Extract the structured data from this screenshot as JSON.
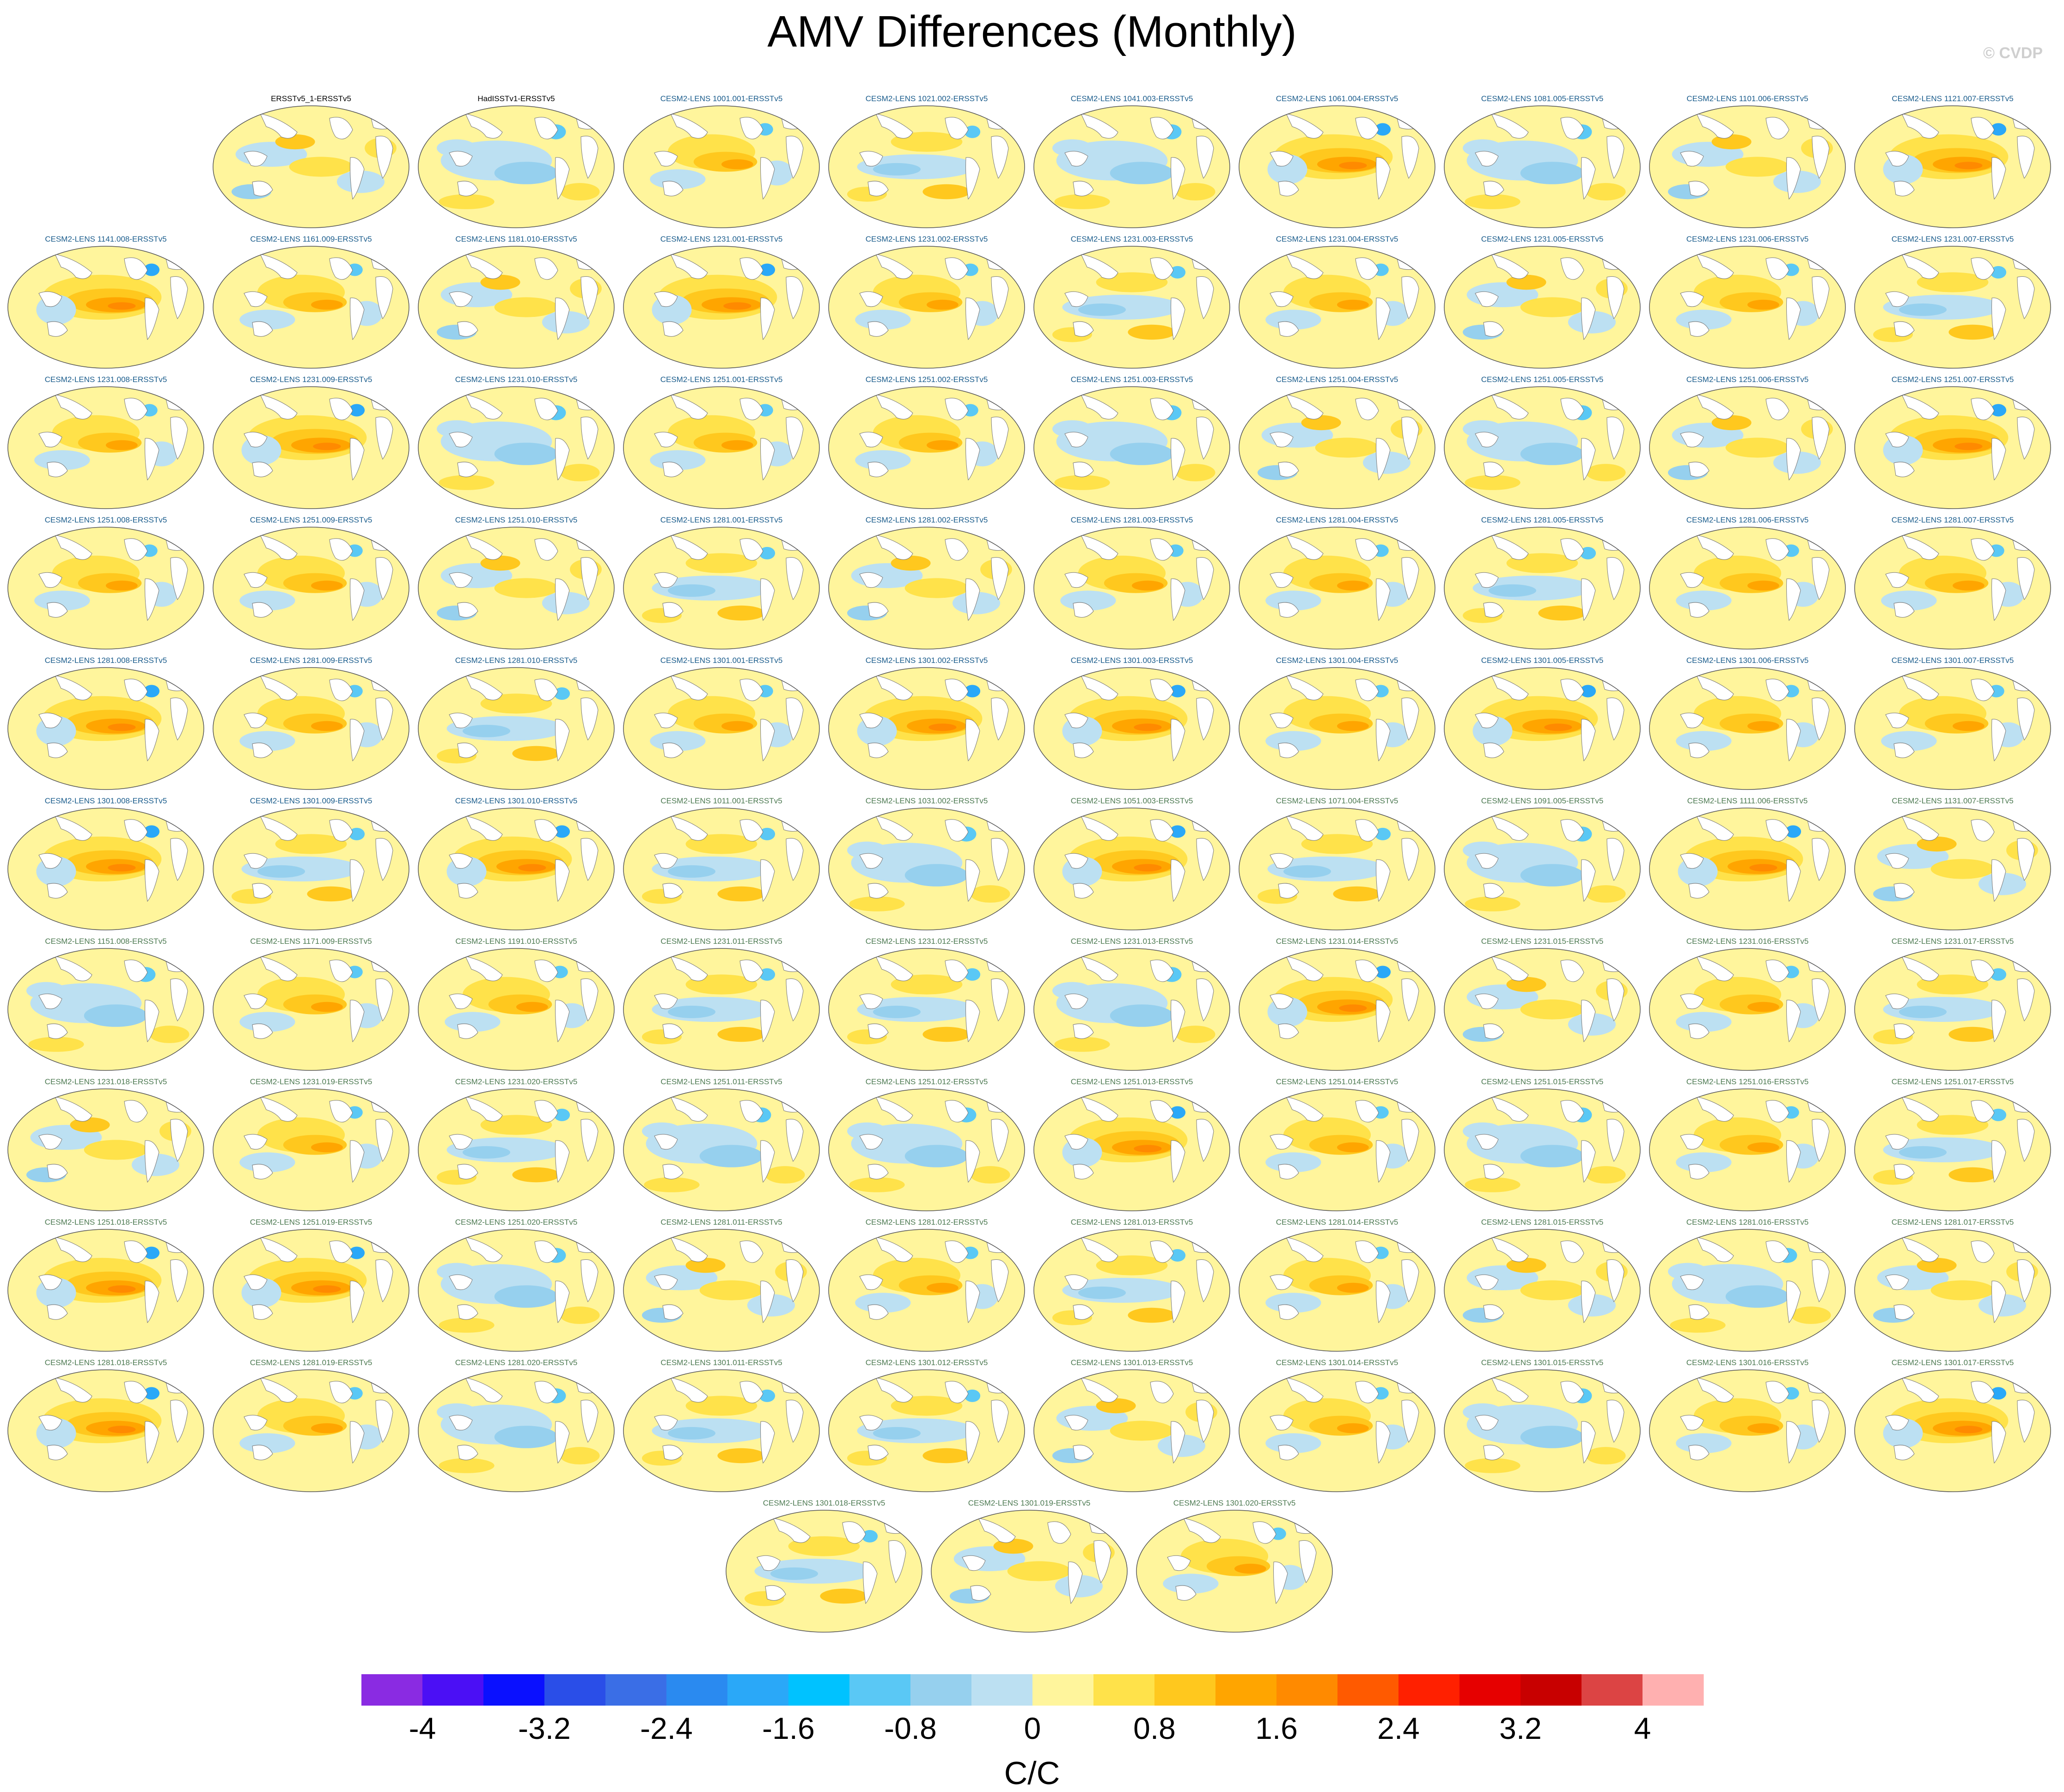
{
  "title": "AMV Differences (Monthly)",
  "watermark": "© CVDP",
  "colors": {
    "obs_label": "#000000",
    "member_label": "#1a5c8c",
    "member_label_alt": "#4d7a52"
  },
  "panels": [
    {
      "label": "ERSSTv5_1-ERSSTv5",
      "style": "obs",
      "pattern": 0
    },
    {
      "label": "HadISSTv1-ERSSTv5",
      "style": "obs",
      "pattern": 1
    },
    {
      "label": "CESM2-LENS 1001.001-ERSSTv5",
      "style": "member",
      "pattern": 2
    },
    {
      "label": "CESM2-LENS 1021.002-ERSSTv5",
      "style": "member",
      "pattern": 3
    },
    {
      "label": "CESM2-LENS 1041.003-ERSSTv5",
      "style": "member",
      "pattern": 1
    },
    {
      "label": "CESM2-LENS 1061.004-ERSSTv5",
      "style": "member",
      "pattern": 4
    },
    {
      "label": "CESM2-LENS 1081.005-ERSSTv5",
      "style": "member",
      "pattern": 1
    },
    {
      "label": "CESM2-LENS 1101.006-ERSSTv5",
      "style": "member",
      "pattern": 0
    },
    {
      "label": "CESM2-LENS 1121.007-ERSSTv5",
      "style": "member",
      "pattern": 4
    },
    {
      "label": "CESM2-LENS 1141.008-ERSSTv5",
      "style": "member",
      "pattern": 4
    },
    {
      "label": "CESM2-LENS 1161.009-ERSSTv5",
      "style": "member",
      "pattern": 2
    },
    {
      "label": "CESM2-LENS 1181.010-ERSSTv5",
      "style": "member",
      "pattern": 0
    },
    {
      "label": "CESM2-LENS 1231.001-ERSSTv5",
      "style": "member",
      "pattern": 4
    },
    {
      "label": "CESM2-LENS 1231.002-ERSSTv5",
      "style": "member",
      "pattern": 2
    },
    {
      "label": "CESM2-LENS 1231.003-ERSSTv5",
      "style": "member",
      "pattern": 3
    },
    {
      "label": "CESM2-LENS 1231.004-ERSSTv5",
      "style": "member",
      "pattern": 2
    },
    {
      "label": "CESM2-LENS 1231.005-ERSSTv5",
      "style": "member",
      "pattern": 0
    },
    {
      "label": "CESM2-LENS 1231.006-ERSSTv5",
      "style": "member",
      "pattern": 2
    },
    {
      "label": "CESM2-LENS 1231.007-ERSSTv5",
      "style": "member",
      "pattern": 3
    },
    {
      "label": "CESM2-LENS 1231.008-ERSSTv5",
      "style": "member",
      "pattern": 2
    },
    {
      "label": "CESM2-LENS 1231.009-ERSSTv5",
      "style": "member",
      "pattern": 4
    },
    {
      "label": "CESM2-LENS 1231.010-ERSSTv5",
      "style": "member",
      "pattern": 1
    },
    {
      "label": "CESM2-LENS 1251.001-ERSSTv5",
      "style": "member",
      "pattern": 2
    },
    {
      "label": "CESM2-LENS 1251.002-ERSSTv5",
      "style": "member",
      "pattern": 2
    },
    {
      "label": "CESM2-LENS 1251.003-ERSSTv5",
      "style": "member",
      "pattern": 1
    },
    {
      "label": "CESM2-LENS 1251.004-ERSSTv5",
      "style": "member",
      "pattern": 0
    },
    {
      "label": "CESM2-LENS 1251.005-ERSSTv5",
      "style": "member",
      "pattern": 1
    },
    {
      "label": "CESM2-LENS 1251.006-ERSSTv5",
      "style": "member",
      "pattern": 0
    },
    {
      "label": "CESM2-LENS 1251.007-ERSSTv5",
      "style": "member",
      "pattern": 4
    },
    {
      "label": "CESM2-LENS 1251.008-ERSSTv5",
      "style": "member",
      "pattern": 2
    },
    {
      "label": "CESM2-LENS 1251.009-ERSSTv5",
      "style": "member",
      "pattern": 2
    },
    {
      "label": "CESM2-LENS 1251.010-ERSSTv5",
      "style": "member",
      "pattern": 0
    },
    {
      "label": "CESM2-LENS 1281.001-ERSSTv5",
      "style": "member",
      "pattern": 3
    },
    {
      "label": "CESM2-LENS 1281.002-ERSSTv5",
      "style": "member",
      "pattern": 0
    },
    {
      "label": "CESM2-LENS 1281.003-ERSSTv5",
      "style": "member",
      "pattern": 2
    },
    {
      "label": "CESM2-LENS 1281.004-ERSSTv5",
      "style": "member",
      "pattern": 2
    },
    {
      "label": "CESM2-LENS 1281.005-ERSSTv5",
      "style": "member",
      "pattern": 3
    },
    {
      "label": "CESM2-LENS 1281.006-ERSSTv5",
      "style": "member",
      "pattern": 2
    },
    {
      "label": "CESM2-LENS 1281.007-ERSSTv5",
      "style": "member",
      "pattern": 2
    },
    {
      "label": "CESM2-LENS 1281.008-ERSSTv5",
      "style": "member",
      "pattern": 4
    },
    {
      "label": "CESM2-LENS 1281.009-ERSSTv5",
      "style": "member",
      "pattern": 2
    },
    {
      "label": "CESM2-LENS 1281.010-ERSSTv5",
      "style": "member",
      "pattern": 3
    },
    {
      "label": "CESM2-LENS 1301.001-ERSSTv5",
      "style": "member",
      "pattern": 2
    },
    {
      "label": "CESM2-LENS 1301.002-ERSSTv5",
      "style": "member",
      "pattern": 4
    },
    {
      "label": "CESM2-LENS 1301.003-ERSSTv5",
      "style": "member",
      "pattern": 4
    },
    {
      "label": "CESM2-LENS 1301.004-ERSSTv5",
      "style": "member",
      "pattern": 2
    },
    {
      "label": "CESM2-LENS 1301.005-ERSSTv5",
      "style": "member",
      "pattern": 4
    },
    {
      "label": "CESM2-LENS 1301.006-ERSSTv5",
      "style": "member",
      "pattern": 2
    },
    {
      "label": "CESM2-LENS 1301.007-ERSSTv5",
      "style": "member",
      "pattern": 2
    },
    {
      "label": "CESM2-LENS 1301.008-ERSSTv5",
      "style": "member",
      "pattern": 4
    },
    {
      "label": "CESM2-LENS 1301.009-ERSSTv5",
      "style": "member",
      "pattern": 3
    },
    {
      "label": "CESM2-LENS 1301.010-ERSSTv5",
      "style": "member",
      "pattern": 4
    },
    {
      "label": "CESM2-LENS 1011.001-ERSSTv5",
      "style": "member_alt",
      "pattern": 3
    },
    {
      "label": "CESM2-LENS 1031.002-ERSSTv5",
      "style": "member_alt",
      "pattern": 1
    },
    {
      "label": "CESM2-LENS 1051.003-ERSSTv5",
      "style": "member_alt",
      "pattern": 4
    },
    {
      "label": "CESM2-LENS 1071.004-ERSSTv5",
      "style": "member_alt",
      "pattern": 3
    },
    {
      "label": "CESM2-LENS 1091.005-ERSSTv5",
      "style": "member_alt",
      "pattern": 1
    },
    {
      "label": "CESM2-LENS 1111.006-ERSSTv5",
      "style": "member_alt",
      "pattern": 4
    },
    {
      "label": "CESM2-LENS 1131.007-ERSSTv5",
      "style": "member_alt",
      "pattern": 0
    },
    {
      "label": "CESM2-LENS 1151.008-ERSSTv5",
      "style": "member_alt",
      "pattern": 1
    },
    {
      "label": "CESM2-LENS 1171.009-ERSSTv5",
      "style": "member_alt",
      "pattern": 2
    },
    {
      "label": "CESM2-LENS 1191.010-ERSSTv5",
      "style": "member_alt",
      "pattern": 2
    },
    {
      "label": "CESM2-LENS 1231.011-ERSSTv5",
      "style": "member_alt",
      "pattern": 3
    },
    {
      "label": "CESM2-LENS 1231.012-ERSSTv5",
      "style": "member_alt",
      "pattern": 3
    },
    {
      "label": "CESM2-LENS 1231.013-ERSSTv5",
      "style": "member_alt",
      "pattern": 1
    },
    {
      "label": "CESM2-LENS 1231.014-ERSSTv5",
      "style": "member_alt",
      "pattern": 4
    },
    {
      "label": "CESM2-LENS 1231.015-ERSSTv5",
      "style": "member_alt",
      "pattern": 0
    },
    {
      "label": "CESM2-LENS 1231.016-ERSSTv5",
      "style": "member_alt",
      "pattern": 2
    },
    {
      "label": "CESM2-LENS 1231.017-ERSSTv5",
      "style": "member_alt",
      "pattern": 3
    },
    {
      "label": "CESM2-LENS 1231.018-ERSSTv5",
      "style": "member_alt",
      "pattern": 0
    },
    {
      "label": "CESM2-LENS 1231.019-ERSSTv5",
      "style": "member_alt",
      "pattern": 2
    },
    {
      "label": "CESM2-LENS 1231.020-ERSSTv5",
      "style": "member_alt",
      "pattern": 3
    },
    {
      "label": "CESM2-LENS 1251.011-ERSSTv5",
      "style": "member_alt",
      "pattern": 1
    },
    {
      "label": "CESM2-LENS 1251.012-ERSSTv5",
      "style": "member_alt",
      "pattern": 1
    },
    {
      "label": "CESM2-LENS 1251.013-ERSSTv5",
      "style": "member_alt",
      "pattern": 4
    },
    {
      "label": "CESM2-LENS 1251.014-ERSSTv5",
      "style": "member_alt",
      "pattern": 2
    },
    {
      "label": "CESM2-LENS 1251.015-ERSSTv5",
      "style": "member_alt",
      "pattern": 1
    },
    {
      "label": "CESM2-LENS 1251.016-ERSSTv5",
      "style": "member_alt",
      "pattern": 2
    },
    {
      "label": "CESM2-LENS 1251.017-ERSSTv5",
      "style": "member_alt",
      "pattern": 3
    },
    {
      "label": "CESM2-LENS 1251.018-ERSSTv5",
      "style": "member_alt",
      "pattern": 4
    },
    {
      "label": "CESM2-LENS 1251.019-ERSSTv5",
      "style": "member_alt",
      "pattern": 4
    },
    {
      "label": "CESM2-LENS 1251.020-ERSSTv5",
      "style": "member_alt",
      "pattern": 1
    },
    {
      "label": "CESM2-LENS 1281.011-ERSSTv5",
      "style": "member_alt",
      "pattern": 0
    },
    {
      "label": "CESM2-LENS 1281.012-ERSSTv5",
      "style": "member_alt",
      "pattern": 2
    },
    {
      "label": "CESM2-LENS 1281.013-ERSSTv5",
      "style": "member_alt",
      "pattern": 3
    },
    {
      "label": "CESM2-LENS 1281.014-ERSSTv5",
      "style": "member_alt",
      "pattern": 2
    },
    {
      "label": "CESM2-LENS 1281.015-ERSSTv5",
      "style": "member_alt",
      "pattern": 0
    },
    {
      "label": "CESM2-LENS 1281.016-ERSSTv5",
      "style": "member_alt",
      "pattern": 1
    },
    {
      "label": "CESM2-LENS 1281.017-ERSSTv5",
      "style": "member_alt",
      "pattern": 0
    },
    {
      "label": "CESM2-LENS 1281.018-ERSSTv5",
      "style": "member_alt",
      "pattern": 4
    },
    {
      "label": "CESM2-LENS 1281.019-ERSSTv5",
      "style": "member_alt",
      "pattern": 2
    },
    {
      "label": "CESM2-LENS 1281.020-ERSSTv5",
      "style": "member_alt",
      "pattern": 1
    },
    {
      "label": "CESM2-LENS 1301.011-ERSSTv5",
      "style": "member_alt",
      "pattern": 3
    },
    {
      "label": "CESM2-LENS 1301.012-ERSSTv5",
      "style": "member_alt",
      "pattern": 3
    },
    {
      "label": "CESM2-LENS 1301.013-ERSSTv5",
      "style": "member_alt",
      "pattern": 0
    },
    {
      "label": "CESM2-LENS 1301.014-ERSSTv5",
      "style": "member_alt",
      "pattern": 2
    },
    {
      "label": "CESM2-LENS 1301.015-ERSSTv5",
      "style": "member_alt",
      "pattern": 1
    },
    {
      "label": "CESM2-LENS 1301.016-ERSSTv5",
      "style": "member_alt",
      "pattern": 2
    },
    {
      "label": "CESM2-LENS 1301.017-ERSSTv5",
      "style": "member_alt",
      "pattern": 4
    },
    {
      "label": "CESM2-LENS 1301.018-ERSSTv5",
      "style": "member_alt",
      "pattern": 3
    },
    {
      "label": "CESM2-LENS 1301.019-ERSSTv5",
      "style": "member_alt",
      "pattern": 0
    },
    {
      "label": "CESM2-LENS 1301.020-ERSSTv5",
      "style": "member_alt",
      "pattern": 2
    }
  ],
  "chart_data": {
    "type": "heatmap",
    "title": "AMV Differences (Monthly)",
    "colorbar": {
      "unit_label": "C/C",
      "tick_labels": [
        "-4",
        "-3.2",
        "-2.4",
        "-1.6",
        "-0.8",
        "0",
        "0.8",
        "1.6",
        "2.4",
        "3.2",
        "4"
      ],
      "levels": [
        -4.4,
        -4.0,
        -3.6,
        -3.2,
        -2.8,
        -2.4,
        -2.0,
        -1.6,
        -1.2,
        -0.8,
        -0.4,
        0,
        0.4,
        0.8,
        1.2,
        1.6,
        2.0,
        2.4,
        2.8,
        3.2,
        3.6,
        4.0,
        4.4
      ],
      "colors": [
        "#8a2be2",
        "#4b0ff5",
        "#0a10ff",
        "#2a4ee8",
        "#3a6ee6",
        "#2a8af0",
        "#2aa8f8",
        "#00c2ff",
        "#5ac8f5",
        "#96d0ee",
        "#bce0f2",
        "#fff59c",
        "#ffe24a",
        "#ffc81e",
        "#ffa500",
        "#ff8a00",
        "#ff5a00",
        "#ff2000",
        "#e60000",
        "#c80000",
        "#dc4444",
        "#ffb0b0"
      ]
    }
  }
}
